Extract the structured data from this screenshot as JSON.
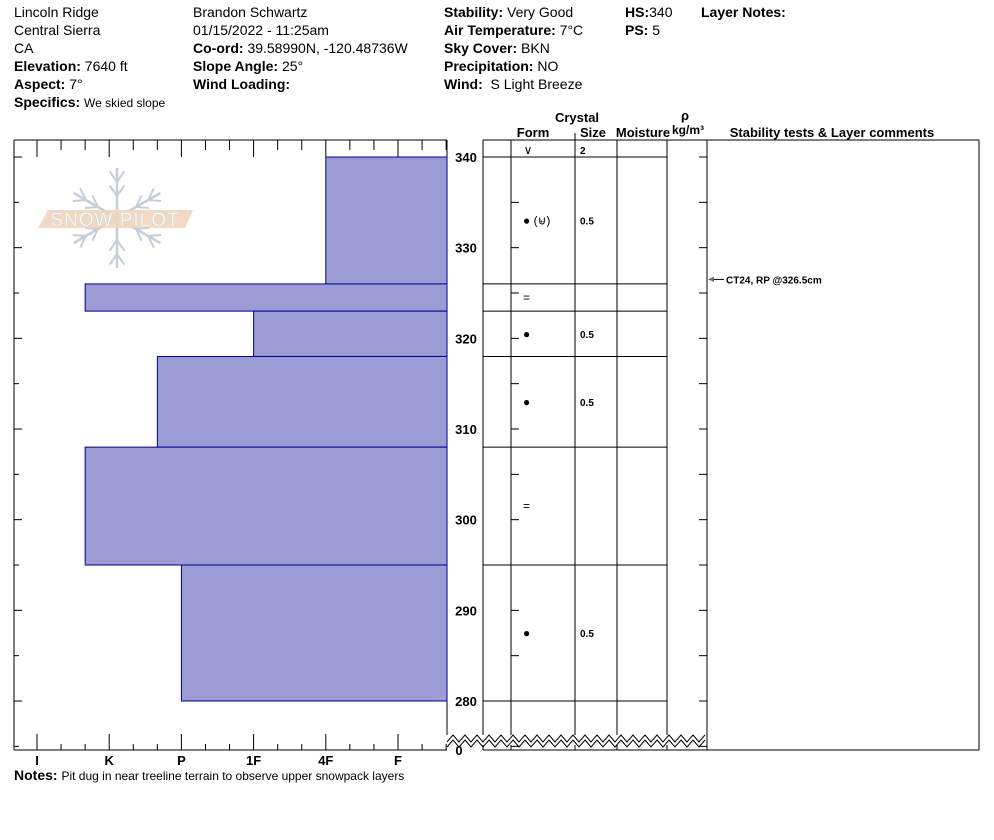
{
  "header": {
    "col1": {
      "location": "Lincoln Ridge",
      "range": "Central Sierra",
      "state": "CA",
      "elevation_label": "Elevation:",
      "elevation": "7640 ft",
      "aspect_label": "Aspect:",
      "aspect": "7°",
      "specifics_label": "Specifics:",
      "specifics": "We skied slope"
    },
    "col2": {
      "observer": "Brandon Schwartz",
      "datetime": "01/15/2022 - 11:25am",
      "coord_label": "Co-ord:",
      "coord": "39.58990N, -120.48736W",
      "slope_label": "Slope Angle:",
      "slope": "25°",
      "wind_loading_label": "Wind Loading:",
      "wind_loading": ""
    },
    "col3": {
      "stability_label": "Stability:",
      "stability": "Very Good",
      "air_temp_label": "Air Temperature:",
      "air_temp": "7°C",
      "sky_label": "Sky Cover:",
      "sky": "BKN",
      "precip_label": "Precipitation:",
      "precip": "NO",
      "wind_label": "Wind:",
      "wind": "S Light Breeze"
    },
    "col4": {
      "hs_label": "HS:",
      "hs": "340",
      "ps_label": "PS:",
      "ps": "5"
    },
    "layer_notes_label": "Layer Notes:"
  },
  "notes_label": "Notes:",
  "notes": "Pit dug in near treeline terrain to observe upper snowpack layers",
  "logo": "SNOW PILOT",
  "colors": {
    "bar_fill": "#9b9bd5",
    "bar_stroke": "#00008b",
    "logo_band": "#f0d5bd",
    "logo_flake": "#c5ced6"
  },
  "table_headers": {
    "crystal": "Crystal",
    "form": "Form",
    "size": "Size",
    "moisture": "Moisture",
    "rho": "ρ",
    "density": "kg/m³",
    "comments": "Stability tests & Layer comments"
  },
  "chart_data": {
    "type": "bar",
    "orientation": "horizontal",
    "ylabel": "",
    "ylim": [
      280,
      340
    ],
    "yticks": [
      340,
      330,
      320,
      310,
      300,
      290,
      280
    ],
    "y_bottom_label": "0",
    "x_ticks": [
      "I",
      "K",
      "P",
      "1F",
      "4F",
      "F"
    ],
    "surface": {
      "form": "∨",
      "size": "2"
    },
    "layers": [
      {
        "top": 340,
        "bottom": 326,
        "hardness": "4F",
        "form": "● (⊌)",
        "size": "0.5"
      },
      {
        "top": 326,
        "bottom": 323,
        "hardness": "K-",
        "form": "=",
        "size": ""
      },
      {
        "top": 323,
        "bottom": 318,
        "hardness": "1F",
        "form": "●",
        "size": "0.5"
      },
      {
        "top": 318,
        "bottom": 308,
        "hardness": "P-",
        "form": "●",
        "size": "0.5"
      },
      {
        "top": 308,
        "bottom": 295,
        "hardness": "K-",
        "form": "=",
        "size": ""
      },
      {
        "top": 295,
        "bottom": 280,
        "hardness": "P",
        "form": "●",
        "size": "0.5"
      }
    ],
    "tests": [
      {
        "depth": 326.5,
        "text": "CT24, RP @326.5cm"
      }
    ]
  }
}
